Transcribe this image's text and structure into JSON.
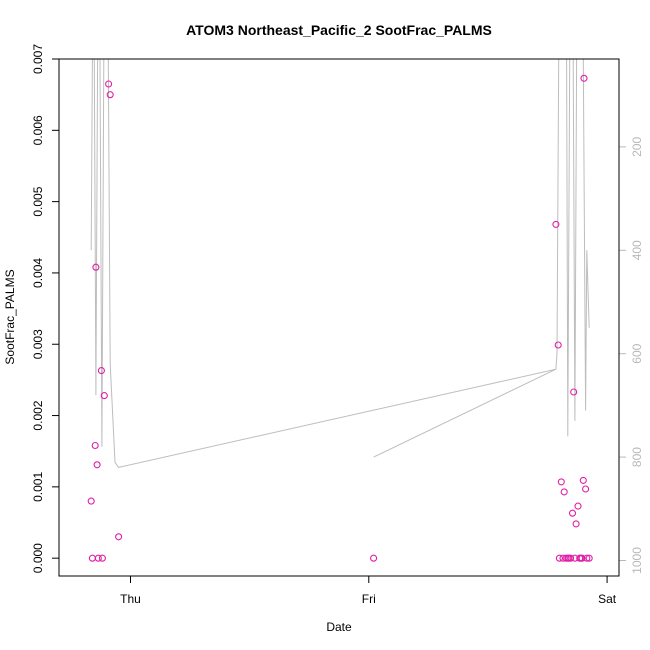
{
  "chart_data": {
    "type": "scatter",
    "title": "ATOM3 Northeast_Pacific_2 SootFrac_PALMS",
    "xlabel": "Date",
    "ylabel": "SootFrac_PALMS",
    "x_ticks": [
      "Thu",
      "Fri",
      "Sat"
    ],
    "x_units": "days since Thursday 00:00",
    "xlim": [
      -0.3,
      2.05
    ],
    "ylim": [
      -0.00025,
      0.007
    ],
    "y_ticks": [
      "0.000",
      "0.001",
      "0.002",
      "0.003",
      "0.004",
      "0.005",
      "0.006",
      "0.007"
    ],
    "y2_ticks": [
      "200",
      "400",
      "600",
      "800",
      "1000"
    ],
    "y2lim": [
      1030,
      30
    ],
    "y2_reversed": true,
    "point_color": "#e01fa8",
    "trace_color": "#bdbdbd",
    "grid": false,
    "points": [
      {
        "x": -0.165,
        "y": 0.0008
      },
      {
        "x": -0.16,
        "y": 0.0
      },
      {
        "x": -0.148,
        "y": 0.00158
      },
      {
        "x": -0.145,
        "y": 0.00408
      },
      {
        "x": -0.14,
        "y": 0.00131
      },
      {
        "x": -0.135,
        "y": 0.0
      },
      {
        "x": -0.122,
        "y": 0.00263
      },
      {
        "x": -0.118,
        "y": 0.0
      },
      {
        "x": -0.11,
        "y": 0.00228
      },
      {
        "x": -0.092,
        "y": 0.00665
      },
      {
        "x": -0.085,
        "y": 0.0065
      },
      {
        "x": -0.05,
        "y": 0.0003
      },
      {
        "x": 1.02,
        "y": 0.0
      },
      {
        "x": 1.785,
        "y": 0.00468
      },
      {
        "x": 1.795,
        "y": 0.00299
      },
      {
        "x": 1.8,
        "y": 0.0
      },
      {
        "x": 1.808,
        "y": 0.00107
      },
      {
        "x": 1.815,
        "y": 0.0
      },
      {
        "x": 1.82,
        "y": 0.00093
      },
      {
        "x": 1.828,
        "y": 0.0
      },
      {
        "x": 1.835,
        "y": 0.0
      },
      {
        "x": 1.84,
        "y": 0.0
      },
      {
        "x": 1.847,
        "y": 0.0
      },
      {
        "x": 1.855,
        "y": 0.00063
      },
      {
        "x": 1.86,
        "y": 0.00233
      },
      {
        "x": 1.865,
        "y": 0.0
      },
      {
        "x": 1.87,
        "y": 0.00048
      },
      {
        "x": 1.878,
        "y": 0.00073
      },
      {
        "x": 1.885,
        "y": 0.0
      },
      {
        "x": 1.89,
        "y": 0.0
      },
      {
        "x": 1.895,
        "y": 0.0
      },
      {
        "x": 1.9,
        "y": 0.00109
      },
      {
        "x": 1.903,
        "y": 0.00673
      },
      {
        "x": 1.91,
        "y": 0.00097
      },
      {
        "x": 1.915,
        "y": 0.0
      },
      {
        "x": 1.925,
        "y": 0.0
      }
    ],
    "trace_segments": [
      [
        [
          -0.165,
          400
        ],
        [
          -0.16,
          30
        ],
        [
          -0.152,
          30
        ],
        [
          -0.145,
          680
        ],
        [
          -0.138,
          30
        ],
        [
          -0.128,
          30
        ],
        [
          -0.12,
          780
        ],
        [
          -0.112,
          30
        ],
        [
          -0.1,
          30
        ],
        [
          -0.093,
          30
        ],
        [
          -0.085,
          620
        ],
        [
          -0.065,
          810
        ],
        [
          -0.05,
          820
        ],
        [
          1.785,
          630
        ],
        [
          1.79,
          600
        ],
        [
          1.797,
          30
        ],
        [
          1.8,
          30
        ],
        [
          1.81,
          30
        ],
        [
          1.82,
          30
        ],
        [
          1.83,
          30
        ],
        [
          1.835,
          760
        ],
        [
          1.843,
          30
        ],
        [
          1.85,
          30
        ],
        [
          1.858,
          30
        ],
        [
          1.865,
          730
        ],
        [
          1.872,
          30
        ],
        [
          1.882,
          30
        ],
        [
          1.89,
          30
        ],
        [
          1.9,
          30
        ],
        [
          1.91,
          710
        ],
        [
          1.915,
          400
        ],
        [
          1.925,
          550
        ]
      ],
      [
        [
          1.02,
          800
        ],
        [
          1.785,
          630
        ]
      ]
    ]
  }
}
